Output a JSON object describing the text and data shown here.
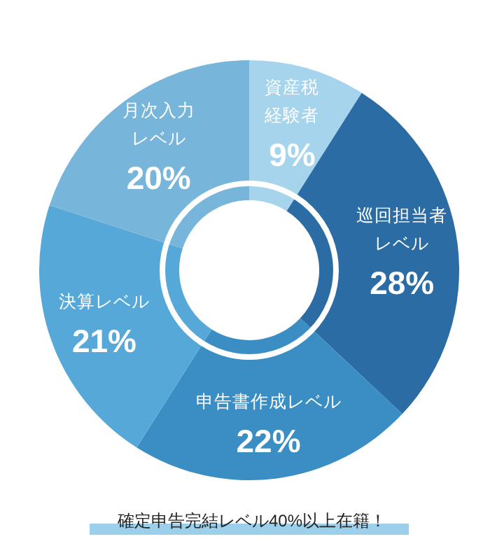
{
  "chart_data": {
    "type": "donut",
    "categories": [
      "資産税経験者",
      "巡回担当者レベル",
      "申告書作成レベル",
      "決算レベル",
      "月次入力レベル"
    ],
    "values": [
      9,
      28,
      22,
      21,
      20
    ],
    "colors": [
      "#a6d4ec",
      "#2a6ca3",
      "#3a8ec4",
      "#55a8d8",
      "#78b5db"
    ],
    "value_labels": [
      "9%",
      "28%",
      "22%",
      "21%",
      "20%"
    ],
    "annotations": [
      "確定申告完結レベル40%以上在籍！"
    ]
  }
}
